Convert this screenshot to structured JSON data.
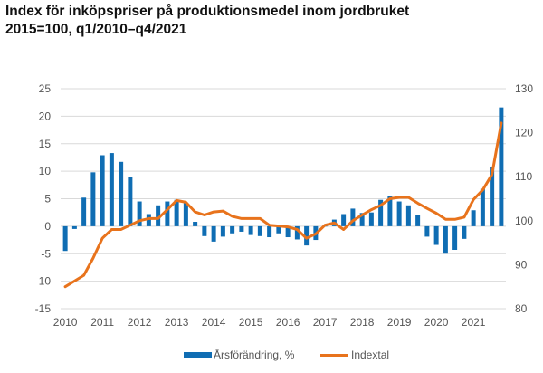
{
  "title": {
    "line1": "Index för inköpspriser på produktionsmedel inom jordbruket",
    "line2": "2015=100, q1/2010–q4/2021"
  },
  "colors": {
    "bar": "#0f6db3",
    "line": "#e8731c",
    "grid": "#d9d9d9",
    "text": "#555555"
  },
  "chart_data": {
    "type": "bar+line",
    "title": "Index för inköpspriser på produktionsmedel inom jordbruket 2015=100, q1/2010–q4/2021",
    "x_tick_labels": [
      "2010",
      "2011",
      "2012",
      "2013",
      "2014",
      "2015",
      "2016",
      "2017",
      "2018",
      "2019",
      "2020",
      "2021"
    ],
    "left_axis": {
      "ylim": [
        -15,
        25
      ],
      "ticks": [
        25,
        20,
        15,
        10,
        5,
        0,
        -5,
        -10,
        -15
      ]
    },
    "right_axis": {
      "ylim": [
        80,
        130
      ],
      "ticks": [
        130,
        120,
        110,
        100,
        90,
        80
      ]
    },
    "grid": true,
    "legend_position": "bottom",
    "series": [
      {
        "name": "Årsförändring, %",
        "type": "bar",
        "axis": "left",
        "values": [
          -4.5,
          -0.5,
          5.2,
          9.8,
          12.9,
          13.3,
          11.7,
          9.0,
          4.5,
          2.2,
          3.8,
          4.5,
          4.8,
          4.2,
          0.8,
          -1.8,
          -2.8,
          -1.9,
          -1.3,
          -1.0,
          -1.6,
          -1.8,
          -2.0,
          -1.3,
          -2.0,
          -2.4,
          -3.5,
          -2.5,
          0.1,
          1.2,
          2.2,
          3.2,
          2.4,
          2.5,
          4.8,
          5.5,
          4.5,
          3.8,
          2.0,
          -1.9,
          -3.4,
          -5.0,
          -4.3,
          -2.3,
          2.9,
          6.8,
          10.8,
          21.6
        ]
      },
      {
        "name": "Indextal",
        "type": "line",
        "axis": "right",
        "values": [
          85.0,
          86.3,
          87.6,
          91.5,
          96.0,
          98.0,
          98.0,
          99.0,
          100.0,
          100.5,
          100.5,
          102.5,
          104.6,
          104.2,
          102.0,
          101.3,
          102.0,
          102.2,
          101.0,
          100.5,
          100.5,
          100.5,
          99.0,
          98.8,
          98.6,
          98.0,
          96.0,
          97.0,
          99.0,
          99.5,
          98.0,
          100.0,
          101.3,
          102.5,
          103.5,
          105.0,
          105.3,
          105.3,
          104.0,
          102.8,
          101.7,
          100.3,
          100.3,
          100.8,
          104.8,
          107.0,
          110.5,
          122.2
        ]
      }
    ]
  }
}
